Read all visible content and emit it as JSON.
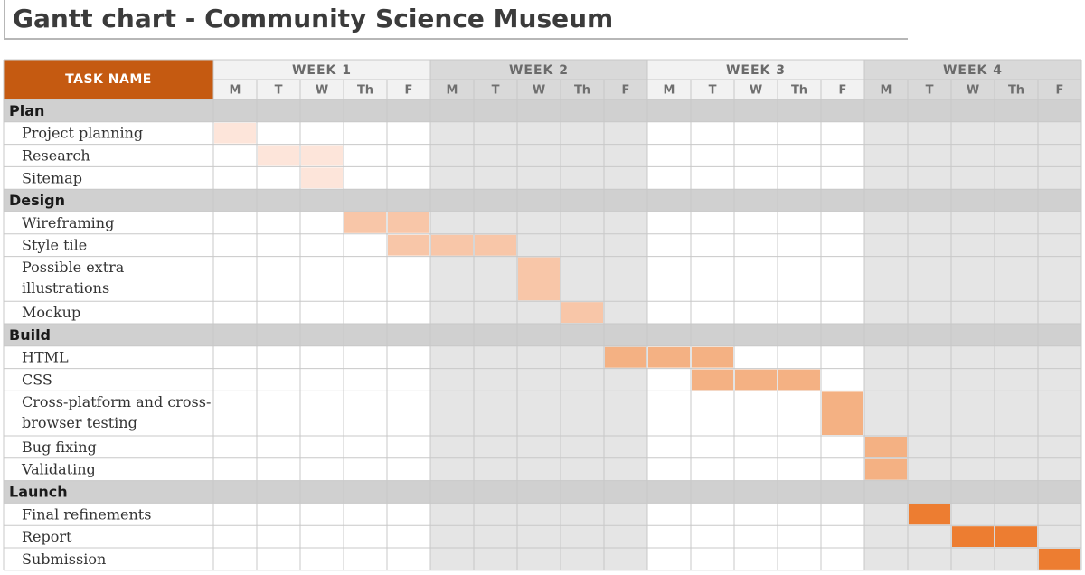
{
  "title": "Gantt chart - Community Science Museum",
  "colors": {
    "header_orange": "#c55a11",
    "stage_colors": [
      "#fde5da",
      "#f8c6a8",
      "#f4b183",
      "#ed7d31"
    ],
    "odd_week_fill": "#ffffff",
    "even_week_fill": "#e5e5e5",
    "week_header_odd": "#f2f2f2",
    "week_header_even": "#d9d9d9",
    "section_fill": "#d0d0d0"
  },
  "chart_data": {
    "type": "table",
    "task_header": "TASK NAME",
    "weeks": [
      "WEEK 1",
      "WEEK 2",
      "WEEK 3",
      "WEEK 4"
    ],
    "days": [
      "M",
      "T",
      "W",
      "Th",
      "F"
    ],
    "sections": [
      {
        "name": "Plan",
        "tasks": [
          {
            "name": "Project planning",
            "start_day": 1,
            "end_day": 1
          },
          {
            "name": "Research",
            "start_day": 2,
            "end_day": 3
          },
          {
            "name": "Sitemap",
            "start_day": 3,
            "end_day": 3
          }
        ]
      },
      {
        "name": "Design",
        "tasks": [
          {
            "name": "Wireframing",
            "start_day": 4,
            "end_day": 5
          },
          {
            "name": "Style tile",
            "start_day": 5,
            "end_day": 7
          },
          {
            "name": "Possible extra illustrations",
            "lines": [
              "Possible extra",
              "illustrations"
            ],
            "start_day": 8,
            "end_day": 8
          },
          {
            "name": "Mockup",
            "start_day": 9,
            "end_day": 9
          }
        ]
      },
      {
        "name": "Build",
        "tasks": [
          {
            "name": "HTML",
            "start_day": 10,
            "end_day": 12
          },
          {
            "name": "CSS",
            "start_day": 12,
            "end_day": 14
          },
          {
            "name": "Cross-platform and cross-browser testing",
            "lines": [
              "Cross-platform and cross-",
              "browser testing"
            ],
            "start_day": 15,
            "end_day": 15
          },
          {
            "name": "Bug fixing",
            "start_day": 16,
            "end_day": 16
          },
          {
            "name": "Validating",
            "start_day": 16,
            "end_day": 16
          }
        ]
      },
      {
        "name": "Launch",
        "tasks": [
          {
            "name": "Final refinements",
            "start_day": 17,
            "end_day": 17
          },
          {
            "name": "Report",
            "start_day": 18,
            "end_day": 19
          },
          {
            "name": "Submission",
            "start_day": 20,
            "end_day": 20
          }
        ]
      }
    ]
  }
}
